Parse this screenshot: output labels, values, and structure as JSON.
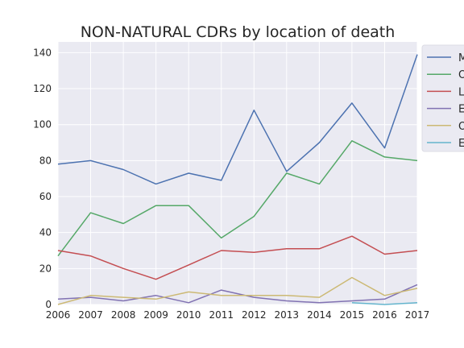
{
  "chart_data": {
    "type": "line",
    "title": "NON-NATURAL CDRs by location of death",
    "xlabel": "",
    "ylabel": "",
    "x": [
      2006,
      2007,
      2008,
      2009,
      2010,
      2011,
      2012,
      2013,
      2014,
      2015,
      2016,
      2017
    ],
    "xlim": [
      2006,
      2017
    ],
    "ylim": [
      0,
      146
    ],
    "yticks": [
      0,
      20,
      40,
      60,
      80,
      100,
      120,
      140
    ],
    "grid": true,
    "legend_position": "top-right",
    "series": [
      {
        "name": "M",
        "color": "#4c72b0",
        "values": [
          78,
          80,
          75,
          67,
          73,
          69,
          108,
          74,
          90,
          112,
          87,
          139
        ]
      },
      {
        "name": "O",
        "color": "#55a868",
        "values": [
          27,
          51,
          45,
          55,
          55,
          37,
          49,
          73,
          67,
          91,
          82,
          80
        ]
      },
      {
        "name": "L",
        "color": "#c44e52",
        "values": [
          30,
          27,
          20,
          14,
          22,
          30,
          29,
          31,
          31,
          38,
          28,
          30
        ]
      },
      {
        "name": "E",
        "color": "#8172b2",
        "values": [
          3,
          4,
          2,
          5,
          1,
          8,
          4,
          2,
          1,
          2,
          3,
          11
        ]
      },
      {
        "name": "O",
        "color": "#ccb974",
        "values": [
          0,
          5,
          4,
          3,
          7,
          5,
          5,
          5,
          4,
          15,
          5,
          9
        ]
      },
      {
        "name": "E",
        "color": "#64b5cd",
        "values": [
          null,
          null,
          null,
          null,
          null,
          null,
          null,
          null,
          null,
          1,
          0,
          1
        ]
      }
    ]
  }
}
